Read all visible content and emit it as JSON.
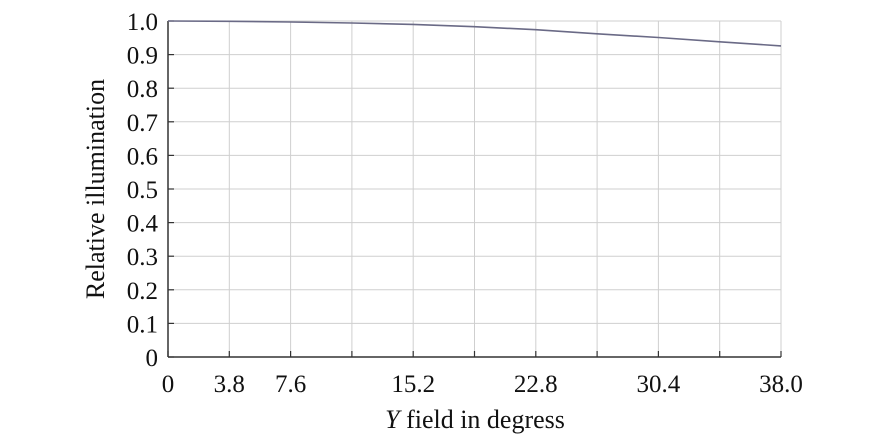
{
  "chart_data": {
    "type": "line",
    "title": "",
    "xlabel_prefix": "Y",
    "xlabel_suffix": " field in degress",
    "ylabel": "Relative illumination",
    "xlim": [
      0,
      38.0
    ],
    "ylim": [
      0,
      1.0
    ],
    "x_ticks": [
      0,
      3.8,
      7.6,
      15.2,
      22.8,
      30.4,
      38.0
    ],
    "x_tick_labels": [
      "0",
      "3.8",
      "7.6",
      "15.2",
      "22.8",
      "30.4",
      "38.0"
    ],
    "y_ticks": [
      0,
      0.1,
      0.2,
      0.3,
      0.4,
      0.5,
      0.6,
      0.7,
      0.8,
      0.9,
      1.0
    ],
    "y_tick_labels": [
      "0",
      "0.1",
      "0.2",
      "0.3",
      "0.4",
      "0.5",
      "0.6",
      "0.7",
      "0.8",
      "0.9",
      "1.0"
    ],
    "x_gridlines": [
      3.8,
      7.6,
      11.4,
      15.2,
      19.0,
      22.8,
      26.6,
      30.4,
      34.2,
      38.0
    ],
    "y_gridlines": [
      0.1,
      0.2,
      0.3,
      0.4,
      0.5,
      0.6,
      0.7,
      0.8,
      0.9,
      1.0
    ],
    "grid": true,
    "series": [
      {
        "color": "#6a6a86",
        "x": [
          0,
          3.8,
          7.6,
          11.4,
          15.2,
          19.0,
          22.8,
          26.6,
          30.4,
          34.2,
          38.0
        ],
        "y": [
          1.0,
          0.999,
          0.997,
          0.994,
          0.99,
          0.983,
          0.974,
          0.962,
          0.951,
          0.938,
          0.926
        ]
      }
    ],
    "colors": {
      "grid": "#cfcfcf",
      "axis": "#333333",
      "line": "#6a6a86"
    }
  }
}
